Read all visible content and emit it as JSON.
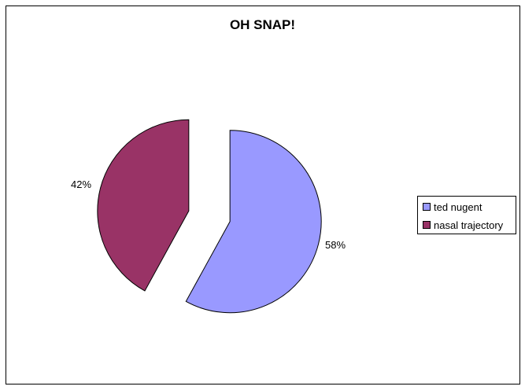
{
  "chart_data": {
    "type": "pie",
    "title": "OH SNAP!",
    "slices": [
      {
        "name": "ted nugent",
        "value": 58,
        "label": "58%",
        "color": "#9999ff"
      },
      {
        "name": "nasal trajectory",
        "value": 42,
        "label": "42%",
        "color": "#993366"
      }
    ],
    "exploded": true,
    "legend": "right"
  }
}
